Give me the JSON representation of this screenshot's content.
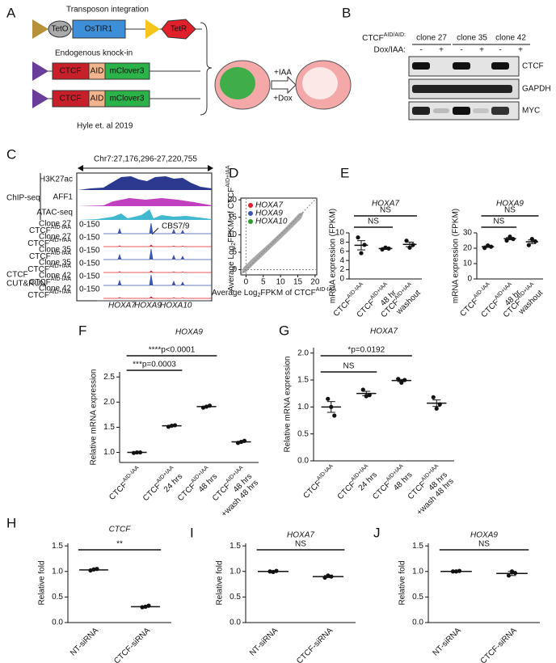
{
  "panel_labels": [
    "A",
    "B",
    "C",
    "D",
    "E",
    "F",
    "G",
    "H",
    "I",
    "J"
  ],
  "panel_a": {
    "transposon": "Transposon integration",
    "teto": "TetO",
    "ostir1": "OsTIR1",
    "tetr": "TetR",
    "knockin": "Endogenous knock-in",
    "ctcf": "CTCF",
    "aid": "AID",
    "mclover": "mClover3",
    "iaa": "+IAA",
    "dox": "+Dox",
    "citation": "Hyle et. al 2019"
  },
  "panel_b": {
    "genotype": "CTCF",
    "genotype_sup": "AID/AID:",
    "clones": [
      "clone 27",
      "clone 35",
      "clone 42"
    ],
    "treatment": "Dox/IAA:",
    "minus": "-",
    "plus": "+",
    "blots": [
      "CTCF",
      "GAPDH",
      "MYC"
    ]
  },
  "panel_c": {
    "coordinates": "Chr7:27,176,296-27,220,755",
    "chip_label": "ChIP-seq",
    "chip_tracks": [
      "H3K27ac",
      "AFF1",
      "ATAC-seq"
    ],
    "cutrun_title": [
      "CTCF",
      "CUT&RUN"
    ],
    "cutrun_rows": [
      {
        "clone": "Clone 27",
        "condition": "CTCF",
        "sup": "AID-IAA",
        "range": "0-150"
      },
      {
        "clone": "Clone 27",
        "condition": "CTCF",
        "sup": "AID+IAA",
        "range": "0-150"
      },
      {
        "clone": "Clone 35",
        "condition": "CTCF",
        "sup": "AID-IAA",
        "range": "0-150"
      },
      {
        "clone": "Clone 35",
        "condition": "CTCF",
        "sup": "AID+IAA",
        "range": "0-150"
      },
      {
        "clone": "Clone 42",
        "condition": "CTCF",
        "sup": "AID-IAA",
        "range": "0-150"
      },
      {
        "clone": "Clone 42",
        "condition": "CTCF",
        "sup": "AID+IAA",
        "range": "0-150"
      }
    ],
    "cbs": "CBS7/9",
    "genes": [
      "HOXA7",
      "HOXA9",
      "HOXA10"
    ]
  },
  "chart_data": [
    {
      "type": "scatter",
      "xlabel": {
        "text": "Average Log",
        "sub": "2",
        "text2": "FPKM of CTCF",
        "sup": "AID-IAA"
      },
      "ylabel": {
        "text": "Average Log",
        "sub": "2",
        "text2": "FPKM of CTCF",
        "sup": "AID+IAA"
      },
      "xlim": [
        -1.5,
        20.5
      ],
      "ylim": [
        -1.5,
        20.5
      ],
      "xticks": [
        0,
        5,
        10,
        15,
        20
      ],
      "yticks": [
        0,
        5,
        10,
        15,
        20
      ],
      "legend": [
        {
          "name": "HOXA7",
          "color": "#e0202a"
        },
        {
          "name": "HOXA9",
          "color": "#3d55b0"
        },
        {
          "name": "HOXA10",
          "color": "#2ca02c"
        }
      ]
    },
    {
      "type": "dot",
      "title": "HOXA7",
      "ylabel": "mRNA expression (FPKM)",
      "ylim": [
        0,
        10
      ],
      "yticks": [
        0,
        2,
        4,
        6,
        8,
        10
      ],
      "categories": [
        "CTCF",
        "CTCF",
        "CTCF"
      ],
      "category_sups": [
        "AID-IAA",
        "AID+IAA",
        "AID+IAA"
      ],
      "category_notes": [
        [],
        [
          "48 hr"
        ],
        [
          "washout"
        ]
      ],
      "category_colors": [
        "#3d55b0",
        "#e0202a",
        "#111111"
      ],
      "values": [
        7.3,
        6.6,
        7.5
      ],
      "errors": [
        1.0,
        0.2,
        0.5
      ],
      "points": [
        [
          9.0,
          5.6,
          7.4
        ],
        [
          6.4,
          6.8,
          6.6
        ],
        [
          8.3,
          6.8,
          7.4
        ]
      ],
      "annotations": [
        "NS",
        "NS"
      ]
    },
    {
      "type": "dot",
      "title": "HOXA9",
      "ylabel": "mRNA expression (FPKM)",
      "ylim": [
        0,
        30
      ],
      "yticks": [
        0,
        10,
        20,
        30
      ],
      "categories": [
        "CTCF",
        "CTCF",
        "CTCF"
      ],
      "category_sups": [
        "AID-IAA",
        "AID+IAA",
        "AID+IAA"
      ],
      "category_notes": [
        [],
        [
          "48 hr"
        ],
        [
          "washout"
        ]
      ],
      "category_colors": [
        "#3d55b0",
        "#e0202a",
        "#111111"
      ],
      "values": [
        21,
        26.2,
        24.2
      ],
      "errors": [
        0.5,
        0.7,
        1.2
      ],
      "points": [
        [
          20.2,
          21.8,
          21
        ],
        [
          25,
          27.5,
          26
        ],
        [
          22,
          26,
          24.5
        ]
      ],
      "annotations": [
        "NS",
        "NS"
      ]
    },
    {
      "type": "dot",
      "title": "HOXA9",
      "ylabel": "Relative mRNA expression",
      "ylim": [
        0.8,
        2.6
      ],
      "yticks": [
        {
          "value": 1,
          "label": "1.0"
        },
        1.5,
        {
          "value": 2,
          "label": "2.0"
        },
        2.5
      ],
      "categories": [
        "CTCF",
        "CTCF",
        "CTCF",
        "CTCF"
      ],
      "category_sups": [
        "AID-IAA",
        "AID+IAA",
        "AID+IAA",
        "AID+IAA"
      ],
      "category_notes": [
        [],
        [
          "24 hrs"
        ],
        [
          "48 hrs"
        ],
        [
          "48 hrs",
          "+wash 48 hrs"
        ]
      ],
      "category_colors": [
        "#3d55b0",
        "#e0202a",
        "#e0202a",
        "#111111"
      ],
      "values": [
        1.0,
        1.53,
        1.91,
        1.21
      ],
      "errors": [
        0.01,
        0.01,
        0.01,
        0.01
      ],
      "points": [
        [
          0.99,
          1.0,
          1.0
        ],
        [
          1.51,
          1.53,
          1.54
        ],
        [
          1.89,
          1.91,
          1.93
        ],
        [
          1.19,
          1.21,
          1.23
        ]
      ],
      "annotations": [
        "***p=0.0003",
        "****p<0.0001"
      ]
    },
    {
      "type": "dot",
      "title": "HOXA7",
      "ylabel": "Relative mRNA expression",
      "ylim": [
        0,
        2.1
      ],
      "yticks": [
        {
          "value": 0,
          "label": "0.0"
        },
        0.5,
        {
          "value": 1,
          "label": "1.0"
        },
        1.5,
        {
          "value": 2,
          "label": "2.0"
        }
      ],
      "categories": [
        "CTCF",
        "CTCF",
        "CTCF",
        "CTCF"
      ],
      "category_sups": [
        "AID-IAA",
        "AID+IAA",
        "AID+IAA",
        "AID+IAA"
      ],
      "category_notes": [
        [],
        [
          "24 hrs"
        ],
        [
          "48 hrs"
        ],
        [
          "48 hrs",
          "+wash 48 hrs"
        ]
      ],
      "category_colors": [
        "#3d55b0",
        "#e0202a",
        "#e0202a",
        "#111111"
      ],
      "values": [
        1.0,
        1.25,
        1.49,
        1.07
      ],
      "errors": [
        0.1,
        0.04,
        0.02,
        0.06
      ],
      "points": [
        [
          1.15,
          1.0,
          0.84
        ],
        [
          1.32,
          1.2,
          1.22
        ],
        [
          1.52,
          1.45,
          1.5
        ],
        [
          1.18,
          0.97,
          1.05
        ]
      ],
      "annotations": [
        "NS",
        "*p=0.0192"
      ]
    },
    {
      "type": "dot",
      "title": "CTCF",
      "ylabel": "Relative fold",
      "ylim": [
        0,
        1.55
      ],
      "yticks": [
        {
          "value": 0,
          "label": "0.0"
        },
        0.5,
        {
          "value": 1,
          "label": "1.0"
        },
        1.5
      ],
      "categories": [
        "NT-siRNA",
        "CTCF-siRNA"
      ],
      "category_notes": [
        [],
        []
      ],
      "category_colors": [
        "#111111",
        "#111111"
      ],
      "values": [
        1.03,
        0.31
      ],
      "errors": [
        0.01,
        0.01
      ],
      "points": [
        [
          1.02,
          1.04,
          1.05
        ],
        [
          0.3,
          0.31,
          0.33
        ]
      ],
      "annotations": [
        "**"
      ]
    },
    {
      "type": "dot",
      "title": "HOXA7",
      "ylabel": "Relative fold",
      "ylim": [
        0,
        1.55
      ],
      "yticks": [
        {
          "value": 0,
          "label": "0.0"
        },
        0.5,
        {
          "value": 1,
          "label": "1.0"
        },
        1.5
      ],
      "categories": [
        "NT-siRNA",
        "CTCF-siRNA"
      ],
      "category_notes": [
        [],
        []
      ],
      "category_colors": [
        "#111111",
        "#111111"
      ],
      "values": [
        1.0,
        0.9
      ],
      "errors": [
        0.01,
        0.02
      ],
      "points": [
        [
          1.0,
          0.99,
          1.01
        ],
        [
          0.88,
          0.92,
          0.9
        ]
      ],
      "annotations": [
        "NS"
      ]
    },
    {
      "type": "dot",
      "title": "HOXA9",
      "ylabel": "Relative fold",
      "ylim": [
        0,
        1.55
      ],
      "yticks": [
        {
          "value": 0,
          "label": "0.0"
        },
        0.5,
        {
          "value": 1,
          "label": "1.0"
        },
        1.5
      ],
      "categories": [
        "NT-siRNA",
        "CTCF-siRNA"
      ],
      "category_notes": [
        [],
        []
      ],
      "category_colors": [
        "#111111",
        "#111111"
      ],
      "values": [
        1.0,
        0.96
      ],
      "errors": [
        0.01,
        0.04
      ],
      "points": [
        [
          1.0,
          1.0,
          1.01
        ],
        [
          0.92,
          1.0,
          0.97
        ]
      ],
      "annotations": [
        "NS"
      ]
    }
  ]
}
